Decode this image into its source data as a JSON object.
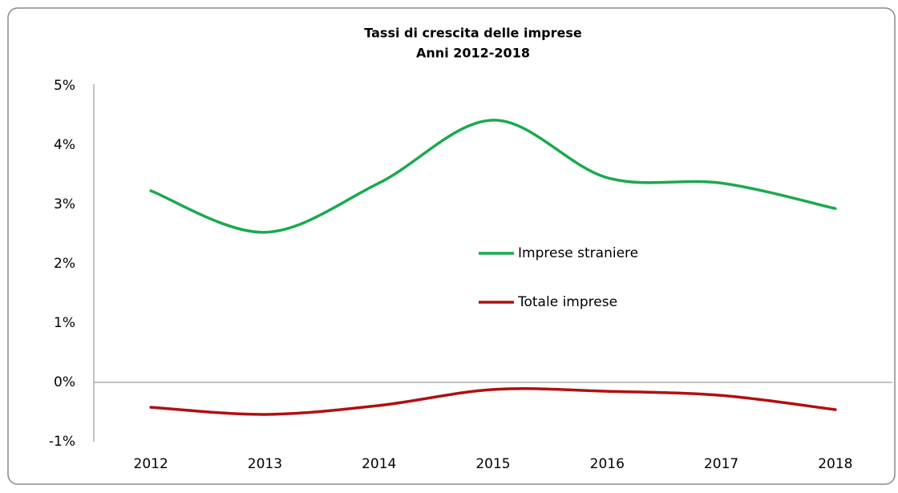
{
  "chart_data": {
    "type": "line",
    "title": "Tassi di crescita delle imprese",
    "subtitle": "Anni 2012-2018",
    "categories": [
      "2012",
      "2013",
      "2014",
      "2015",
      "2016",
      "2017",
      "2018"
    ],
    "series": [
      {
        "name": "Imprese straniere",
        "color": "#1aaa4e",
        "values": [
          3.23,
          2.53,
          3.36,
          4.42,
          3.45,
          3.36,
          2.93
        ]
      },
      {
        "name": "Totale imprese",
        "color": "#b01010",
        "values": [
          -0.42,
          -0.54,
          -0.39,
          -0.12,
          -0.15,
          -0.22,
          -0.46
        ]
      }
    ],
    "ylim": [
      -1,
      5
    ],
    "yticks": [
      {
        "value": -1,
        "label": "-1%"
      },
      {
        "value": 0,
        "label": "0%"
      },
      {
        "value": 1,
        "label": "1%"
      },
      {
        "value": 2,
        "label": "2%"
      },
      {
        "value": 3,
        "label": "3%"
      },
      {
        "value": 4,
        "label": "4%"
      },
      {
        "value": 5,
        "label": "5%"
      }
    ],
    "grid": false,
    "smooth": true,
    "legend": "center"
  }
}
